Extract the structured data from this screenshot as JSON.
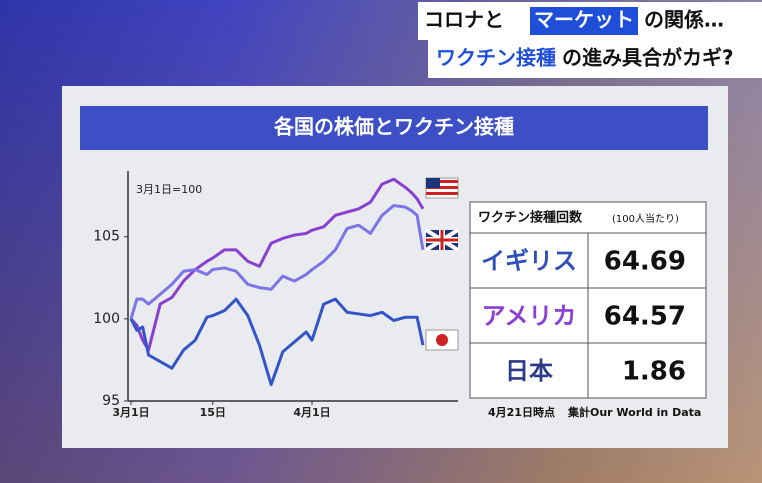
{
  "header": {
    "line1": [
      "コロナと",
      "マーケット",
      "の関係…"
    ],
    "line2": [
      "ワクチン接種",
      "の進み具合がカギ?"
    ]
  },
  "chart_data": {
    "type": "line",
    "title": "各国の株価とワクチン接種",
    "note": "3月1日=100",
    "x": [
      0,
      1,
      2,
      3,
      5,
      7,
      9,
      11,
      13,
      14,
      16,
      18,
      20,
      22,
      24,
      26,
      28,
      30,
      31,
      33,
      35,
      37,
      39,
      41,
      43,
      45,
      47,
      48,
      49,
      50
    ],
    "series": [
      {
        "color": "#8a3fd0",
        "values": [
          100,
          99.6,
          98.7,
          98.1,
          100.9,
          101.3,
          102.3,
          103.0,
          103.5,
          103.7,
          104.2,
          104.2,
          103.5,
          103.2,
          104.6,
          104.9,
          105.1,
          105.2,
          105.4,
          105.6,
          106.3,
          106.5,
          106.7,
          107.1,
          108.2,
          108.5,
          108.0,
          107.7,
          107.3,
          106.7
        ]
      },
      {
        "color": "#7f73e6",
        "values": [
          100,
          101.2,
          101.2,
          100.9,
          101.5,
          102.1,
          102.9,
          103.0,
          102.7,
          103.0,
          103.1,
          102.9,
          102.1,
          101.9,
          101.8,
          102.6,
          102.3,
          102.7,
          103.0,
          103.5,
          104.2,
          105.5,
          105.7,
          105.2,
          106.3,
          106.9,
          106.8,
          106.6,
          106.3,
          104.2
        ]
      },
      {
        "color": "#3455c8",
        "values": [
          100,
          99.3,
          99.5,
          97.8,
          97.4,
          97.0,
          98.1,
          98.7,
          100.1,
          100.2,
          100.5,
          101.2,
          100.2,
          98.4,
          96.0,
          98.0,
          98.6,
          99.2,
          98.7,
          100.9,
          101.2,
          100.4,
          100.3,
          100.2,
          100.4,
          99.9,
          100.1,
          100.1,
          100.1,
          98.4
        ]
      }
    ],
    "xlim": [
      0,
      56
    ],
    "xticks": [
      {
        "value": 0,
        "label": "3月1日"
      },
      {
        "value": 14,
        "label": "15日"
      },
      {
        "value": 31,
        "label": "4月1日"
      }
    ],
    "ylim": [
      95,
      109
    ],
    "yticks": [
      95,
      100,
      105
    ]
  },
  "table": {
    "title": "ワクチン接種回数",
    "subtitle": "(100人当たり)",
    "rows": [
      [
        "イギリス",
        "64.69"
      ],
      [
        "アメリカ",
        "64.57"
      ],
      [
        "日本",
        "1.86"
      ]
    ],
    "notes": [
      "4月21日時点",
      "集計Our World in Data"
    ]
  }
}
